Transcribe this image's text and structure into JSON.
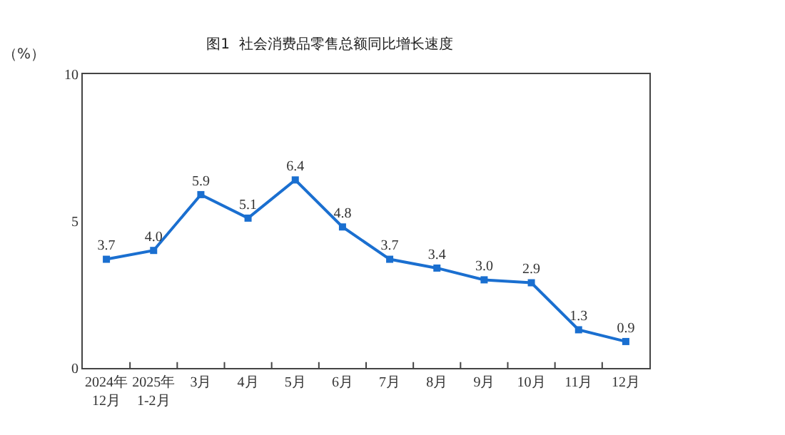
{
  "chart_data": {
    "type": "line",
    "title": "图1  社会消费品零售总额同比增长速度",
    "ylabel": "（%）",
    "categories": [
      "2024年\n12月",
      "2025年\n1-2月",
      "3月",
      "4月",
      "5月",
      "6月",
      "7月",
      "8月",
      "9月",
      "10月",
      "11月",
      "12月"
    ],
    "series": [
      {
        "color": "#1a6fd0",
        "values": [
          3.7,
          4.0,
          5.9,
          5.1,
          6.4,
          4.8,
          3.7,
          3.4,
          3.0,
          2.9,
          1.3,
          0.9
        ],
        "value_labels": [
          "3.7",
          "4.0",
          "5.9",
          "5.1",
          "6.4",
          "4.8",
          "3.7",
          "3.4",
          "3.0",
          "2.9",
          "1.3",
          "0.9"
        ]
      }
    ],
    "ylim": [
      0,
      10
    ],
    "yticks": [
      0,
      5,
      10
    ],
    "grid": false,
    "marker": "square",
    "line_style": "solid"
  }
}
